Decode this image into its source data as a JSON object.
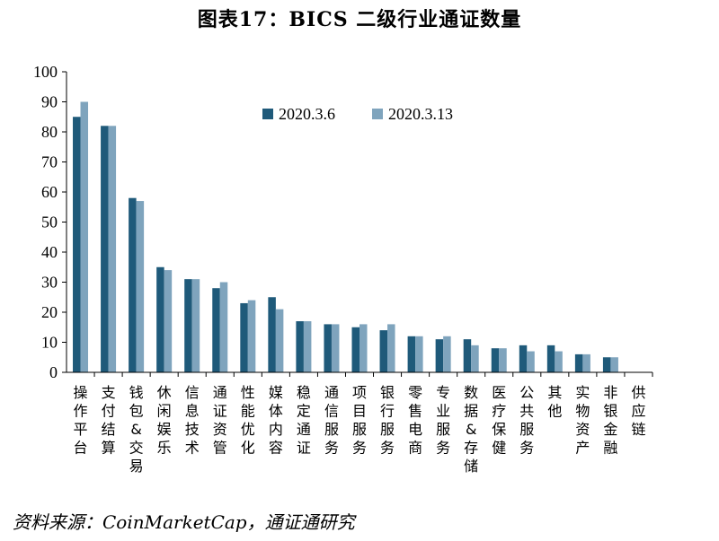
{
  "title": "图表17：BICS 二级行业通证数量",
  "source": "资料来源：CoinMarketCap，通证通研究",
  "colors": {
    "series1": "#1f5a7a",
    "series2": "#7fa4bd"
  },
  "chart_data": {
    "type": "bar",
    "title": "图表17：BICS 二级行业通证数量",
    "xlabel": "",
    "ylabel": "",
    "ylim": [
      0,
      100
    ],
    "yticks": [
      0,
      10,
      20,
      30,
      40,
      50,
      60,
      70,
      80,
      90,
      100
    ],
    "grid": false,
    "legend": "top-right",
    "categories": [
      "操作平台",
      "支付结算",
      "钱包&交易",
      "休闲娱乐",
      "信息技术",
      "通证资管",
      "性能优化",
      "媒体内容",
      "稳定通证",
      "通信服务",
      "项目服务",
      "银行服务",
      "零售电商",
      "专业服务",
      "数据&存储",
      "医疗保健",
      "公共服务",
      "其他",
      "实物资产",
      "非银金融",
      "供应链"
    ],
    "series": [
      {
        "name": "2020.3.6",
        "values": [
          85,
          82,
          58,
          35,
          31,
          28,
          23,
          25,
          17,
          16,
          15,
          14,
          12,
          11,
          11,
          8,
          9,
          9,
          6,
          5,
          0
        ]
      },
      {
        "name": "2020.3.13",
        "values": [
          90,
          82,
          57,
          34,
          31,
          30,
          24,
          21,
          17,
          16,
          16,
          16,
          12,
          12,
          9,
          8,
          7,
          7,
          6,
          5,
          0
        ]
      }
    ]
  }
}
